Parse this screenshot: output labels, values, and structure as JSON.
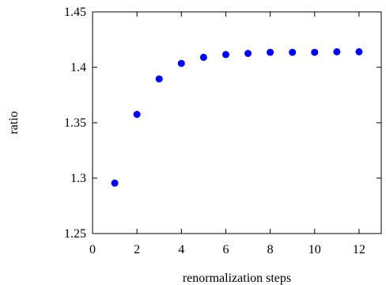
{
  "chart_data": {
    "type": "scatter",
    "title": "",
    "xlabel": "renormalization steps",
    "ylabel": "ratio",
    "xlim": [
      0,
      13
    ],
    "ylim": [
      1.25,
      1.45
    ],
    "x_ticks": [
      0,
      2,
      4,
      6,
      8,
      10,
      12
    ],
    "x_tick_labels": [
      "0",
      "2",
      "4",
      "6",
      "8",
      "10",
      "12"
    ],
    "y_ticks": [
      1.25,
      1.3,
      1.35,
      1.4,
      1.45
    ],
    "y_tick_labels": [
      "1.25",
      "1.3",
      "1.35",
      "1.4",
      "1.45"
    ],
    "grid": false,
    "legend": "none",
    "series": [
      {
        "color": "#0000ff",
        "marker": "circle",
        "points": [
          {
            "x": 1,
            "y": 1.2955
          },
          {
            "x": 2,
            "y": 1.3575
          },
          {
            "x": 3,
            "y": 1.3895
          },
          {
            "x": 4,
            "y": 1.4035
          },
          {
            "x": 5,
            "y": 1.409
          },
          {
            "x": 6,
            "y": 1.4115
          },
          {
            "x": 7,
            "y": 1.4125
          },
          {
            "x": 8,
            "y": 1.4135
          },
          {
            "x": 9,
            "y": 1.4135
          },
          {
            "x": 10,
            "y": 1.4135
          },
          {
            "x": 11,
            "y": 1.414
          },
          {
            "x": 12,
            "y": 1.414
          }
        ]
      }
    ]
  }
}
